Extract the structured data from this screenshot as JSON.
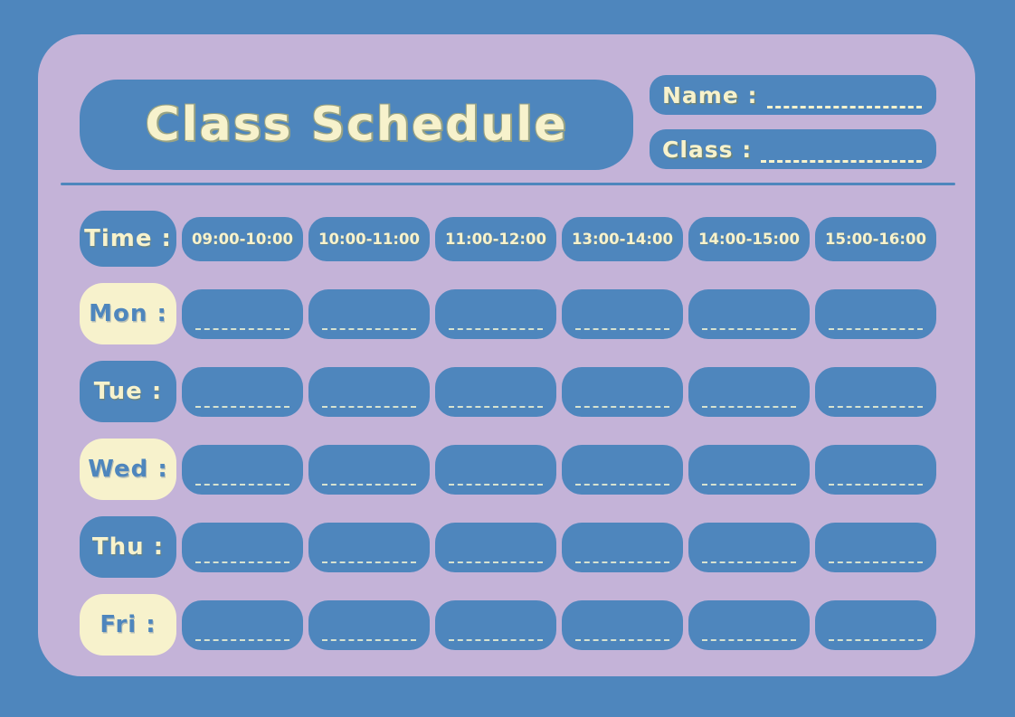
{
  "colors": {
    "background_blue": "#4E86BD",
    "card_lavender": "#C4B3D8",
    "cream": "#F7F2CC",
    "title_outline": "#99A383"
  },
  "header": {
    "title": "Class Schedule",
    "name_label": "Name :",
    "class_label": "Class :",
    "name_value": "",
    "class_value": ""
  },
  "schedule": {
    "time_label": "Time :",
    "time_slots": [
      "09:00-10:00",
      "10:00-11:00",
      "11:00-12:00",
      "13:00-14:00",
      "14:00-15:00",
      "15:00-16:00"
    ],
    "days": [
      {
        "label": "Mon :",
        "style": "cream"
      },
      {
        "label": "Tue :",
        "style": "blue"
      },
      {
        "label": "Wed :",
        "style": "cream"
      },
      {
        "label": "Thu :",
        "style": "blue"
      },
      {
        "label": "Fri :",
        "style": "cream"
      }
    ]
  }
}
